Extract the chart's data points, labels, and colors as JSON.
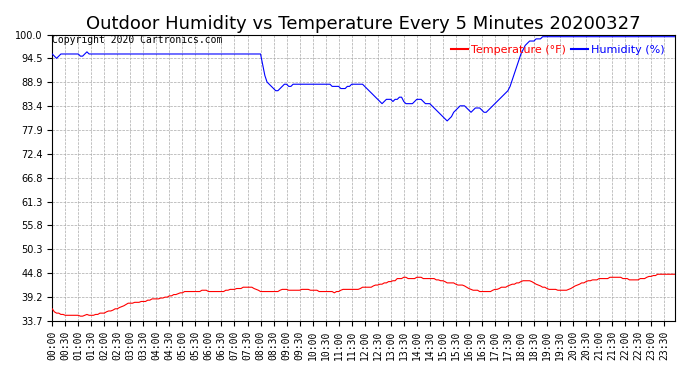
{
  "title": "Outdoor Humidity vs Temperature Every 5 Minutes 20200327",
  "copyright_text": "Copyright 2020 Cartronics.com",
  "legend_temp": "Temperature (°F)",
  "legend_hum": "Humidity (%)",
  "temp_color": "red",
  "hum_color": "blue",
  "ylim_min": 33.7,
  "ylim_max": 100.0,
  "yticks": [
    33.7,
    39.2,
    44.8,
    50.3,
    55.8,
    61.3,
    66.8,
    72.4,
    77.9,
    83.4,
    88.9,
    94.5,
    100.0
  ],
  "background_color": "#ffffff",
  "grid_color": "#aaaaaa",
  "title_fontsize": 13,
  "tick_fontsize": 7,
  "num_points": 288,
  "humidity_data": [
    95.5,
    95.0,
    94.5,
    95.0,
    95.5,
    95.5,
    95.5,
    95.5,
    95.5,
    95.5,
    95.5,
    95.5,
    95.5,
    95.0,
    95.0,
    95.5,
    96.0,
    95.5,
    95.5,
    95.5,
    95.5,
    95.5,
    95.5,
    95.5,
    95.5,
    95.5,
    95.5,
    95.5,
    95.5,
    95.5,
    95.5,
    95.5,
    95.5,
    95.5,
    95.5,
    95.5,
    95.5,
    95.5,
    95.5,
    95.5,
    95.5,
    95.5,
    95.5,
    95.5,
    95.5,
    95.5,
    95.5,
    95.5,
    95.5,
    95.5,
    95.5,
    95.5,
    95.5,
    95.5,
    95.5,
    95.5,
    95.5,
    95.5,
    95.5,
    95.5,
    95.5,
    95.5,
    95.5,
    95.5,
    95.5,
    95.5,
    95.5,
    95.5,
    95.5,
    95.5,
    95.5,
    95.5,
    95.5,
    95.5,
    95.5,
    95.5,
    95.5,
    95.5,
    95.5,
    95.5,
    95.5,
    95.5,
    95.5,
    95.5,
    95.5,
    95.5,
    95.5,
    95.5,
    95.5,
    95.5,
    95.5,
    95.5,
    95.5,
    95.5,
    95.5,
    95.5,
    95.5,
    93.0,
    90.5,
    89.0,
    88.5,
    88.0,
    87.5,
    87.0,
    87.0,
    87.5,
    88.0,
    88.5,
    88.5,
    88.0,
    88.0,
    88.5,
    88.5,
    88.5,
    88.5,
    88.5,
    88.5,
    88.5,
    88.5,
    88.5,
    88.5,
    88.5,
    88.5,
    88.5,
    88.5,
    88.5,
    88.5,
    88.5,
    88.5,
    88.0,
    88.0,
    88.0,
    88.0,
    87.5,
    87.5,
    87.5,
    88.0,
    88.0,
    88.5,
    88.5,
    88.5,
    88.5,
    88.5,
    88.5,
    88.0,
    87.5,
    87.0,
    86.5,
    86.0,
    85.5,
    85.0,
    84.5,
    84.0,
    84.5,
    85.0,
    85.0,
    85.0,
    84.5,
    85.0,
    85.0,
    85.5,
    85.5,
    84.5,
    84.0,
    84.0,
    84.0,
    84.0,
    84.5,
    85.0,
    85.0,
    85.0,
    84.5,
    84.0,
    84.0,
    84.0,
    83.5,
    83.0,
    82.5,
    82.0,
    81.5,
    81.0,
    80.5,
    80.0,
    80.5,
    81.0,
    82.0,
    82.5,
    83.0,
    83.5,
    83.5,
    83.5,
    83.0,
    82.5,
    82.0,
    82.5,
    83.0,
    83.0,
    83.0,
    82.5,
    82.0,
    82.0,
    82.5,
    83.0,
    83.5,
    84.0,
    84.5,
    85.0,
    85.5,
    86.0,
    86.5,
    87.0,
    88.0,
    89.5,
    91.0,
    92.5,
    94.0,
    95.5,
    96.5,
    97.5,
    98.0,
    98.5,
    98.5,
    98.5,
    99.0,
    99.0,
    99.0,
    99.5,
    99.5,
    99.5,
    99.5,
    99.5,
    99.5,
    99.5,
    99.5,
    99.5,
    99.5,
    99.5,
    99.5,
    99.5,
    99.5,
    99.5,
    99.5,
    99.5,
    99.5,
    99.5,
    99.5,
    99.5,
    99.5,
    99.5,
    99.5,
    99.5,
    99.5,
    99.5,
    99.5,
    99.5,
    99.5,
    99.5,
    99.5,
    99.5,
    99.5,
    99.5,
    99.5,
    99.5,
    99.5,
    99.5,
    99.5,
    99.5,
    99.5,
    99.5,
    99.5,
    99.5,
    99.5,
    99.5,
    99.5,
    99.5,
    99.5,
    99.5,
    99.5,
    99.5,
    99.5,
    99.5,
    99.5,
    99.5,
    99.5,
    99.5,
    99.5,
    99.5,
    99.5
  ],
  "temp_data": [
    36.5,
    35.8,
    35.5,
    35.5,
    35.2,
    35.2,
    35.0,
    35.0,
    35.0,
    35.0,
    35.0,
    35.0,
    35.0,
    34.8,
    34.8,
    35.0,
    35.2,
    35.0,
    35.0,
    35.0,
    35.2,
    35.2,
    35.5,
    35.5,
    35.5,
    35.8,
    36.0,
    36.0,
    36.2,
    36.5,
    36.5,
    36.8,
    37.0,
    37.2,
    37.5,
    37.8,
    37.8,
    37.8,
    38.0,
    38.0,
    38.0,
    38.2,
    38.2,
    38.2,
    38.5,
    38.5,
    38.8,
    38.8,
    38.8,
    38.8,
    39.0,
    39.0,
    39.2,
    39.2,
    39.5,
    39.5,
    39.8,
    39.8,
    40.0,
    40.2,
    40.2,
    40.5,
    40.5,
    40.5,
    40.5,
    40.5,
    40.5,
    40.5,
    40.5,
    40.8,
    40.8,
    40.8,
    40.5,
    40.5,
    40.5,
    40.5,
    40.5,
    40.5,
    40.5,
    40.5,
    40.8,
    40.8,
    41.0,
    41.0,
    41.0,
    41.2,
    41.2,
    41.2,
    41.5,
    41.5,
    41.5,
    41.5,
    41.5,
    41.2,
    41.0,
    40.8,
    40.5,
    40.5,
    40.5,
    40.5,
    40.5,
    40.5,
    40.5,
    40.5,
    40.5,
    40.8,
    41.0,
    41.0,
    41.0,
    40.8,
    40.8,
    40.8,
    40.8,
    40.8,
    40.8,
    41.0,
    41.0,
    41.0,
    41.0,
    40.8,
    40.8,
    40.8,
    40.8,
    40.5,
    40.5,
    40.5,
    40.5,
    40.5,
    40.5,
    40.5,
    40.2,
    40.5,
    40.5,
    40.8,
    41.0,
    41.0,
    41.0,
    41.0,
    41.0,
    41.0,
    41.0,
    41.0,
    41.2,
    41.5,
    41.5,
    41.5,
    41.5,
    41.5,
    41.8,
    42.0,
    42.0,
    42.2,
    42.2,
    42.5,
    42.5,
    42.8,
    42.8,
    43.0,
    43.0,
    43.5,
    43.5,
    43.5,
    43.8,
    43.8,
    43.5,
    43.5,
    43.5,
    43.5,
    43.8,
    43.8,
    43.8,
    43.5,
    43.5,
    43.5,
    43.5,
    43.5,
    43.5,
    43.2,
    43.2,
    43.0,
    43.0,
    42.8,
    42.5,
    42.5,
    42.5,
    42.5,
    42.2,
    42.0,
    42.0,
    42.0,
    41.8,
    41.5,
    41.2,
    41.0,
    40.8,
    40.8,
    40.8,
    40.5,
    40.5,
    40.5,
    40.5,
    40.5,
    40.5,
    40.8,
    41.0,
    41.0,
    41.2,
    41.5,
    41.5,
    41.5,
    41.8,
    42.0,
    42.2,
    42.2,
    42.5,
    42.5,
    42.8,
    43.0,
    43.0,
    43.0,
    43.0,
    42.8,
    42.5,
    42.2,
    42.0,
    41.8,
    41.5,
    41.5,
    41.2,
    41.0,
    41.0,
    41.0,
    41.0,
    40.8,
    40.8,
    40.8,
    40.8,
    40.8,
    41.0,
    41.2,
    41.5,
    41.8,
    42.0,
    42.2,
    42.5,
    42.5,
    42.8,
    43.0,
    43.0,
    43.2,
    43.2,
    43.2,
    43.5,
    43.5,
    43.5,
    43.5,
    43.5,
    43.8,
    43.8,
    43.8,
    43.8,
    43.8,
    43.8,
    43.5,
    43.5,
    43.5,
    43.2,
    43.2,
    43.2,
    43.2,
    43.2,
    43.5,
    43.5,
    43.5,
    43.8,
    44.0,
    44.0,
    44.2,
    44.2,
    44.5,
    44.5,
    44.5,
    44.5,
    44.5,
    44.5,
    44.5,
    44.5,
    44.5
  ]
}
